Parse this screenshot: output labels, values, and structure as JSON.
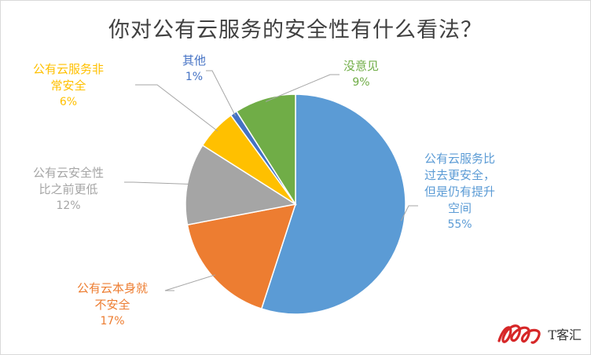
{
  "chart_data": {
    "type": "pie",
    "title": "你对公有云服务的安全性有什么看法？",
    "slices": [
      {
        "lines": [
          "公有云服务比",
          "过去更安全，",
          "但是仍有提升",
          "空间"
        ],
        "value": 55,
        "label": "55%",
        "color": "#5b9bd5"
      },
      {
        "lines": [
          "公有云本身就",
          "不安全"
        ],
        "value": 17,
        "label": "17%",
        "color": "#ed7d31"
      },
      {
        "lines": [
          "公有云安全性",
          "比之前更低"
        ],
        "value": 12,
        "label": "12%",
        "color": "#a5a5a5"
      },
      {
        "lines": [
          "公有云服务非",
          "常安全"
        ],
        "value": 6,
        "label": "6%",
        "color": "#ffc000"
      },
      {
        "lines": [
          "其他"
        ],
        "value": 1,
        "label": "1%",
        "color": "#4472c4"
      },
      {
        "lines": [
          "没意见"
        ],
        "value": 9,
        "label": "9%",
        "color": "#70ad47"
      }
    ],
    "legend": "none (data labels with leader lines)"
  },
  "watermark": {
    "text": "T客汇"
  }
}
